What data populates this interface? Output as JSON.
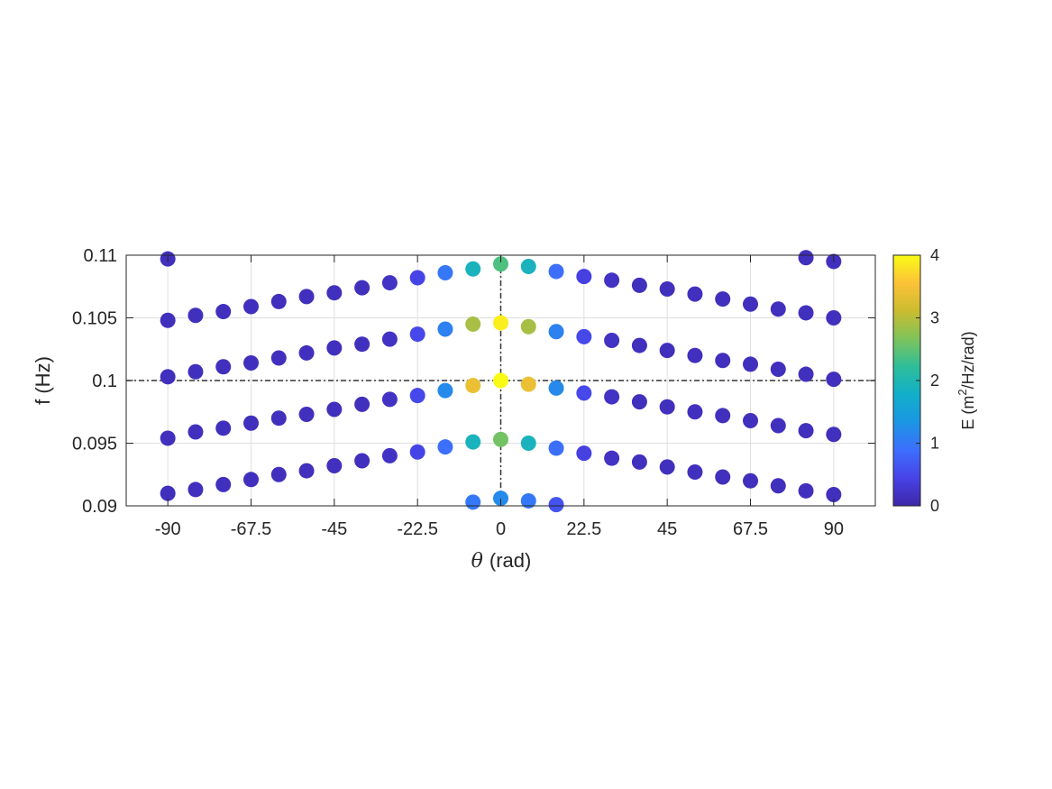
{
  "chart_data": {
    "type": "scatter",
    "xlabel": {
      "symbol": "θ",
      "unit": "(rad)"
    },
    "ylabel": "f (Hz)",
    "xlim": [
      -101.25,
      101.25
    ],
    "ylim": [
      0.09,
      0.11
    ],
    "xticks": [
      -90,
      -67.5,
      -45,
      -22.5,
      0,
      22.5,
      45,
      67.5,
      90
    ],
    "xtick_labels": [
      "-90",
      "-67.5",
      "-45",
      "-22.5",
      "0",
      "22.5",
      "45",
      "67.5",
      "90"
    ],
    "yticks": [
      0.09,
      0.095,
      0.1,
      0.105,
      0.11
    ],
    "ytick_labels": [
      "0.09",
      "0.095",
      "0.1",
      "0.105",
      "0.11"
    ],
    "grid": true,
    "reference_lines": {
      "x": 0,
      "y": 0.1
    },
    "colorbar": {
      "label_prefix": "E (m",
      "label_sup": "2",
      "label_suffix": "/Hz/rad)",
      "range": [
        0,
        4
      ],
      "ticks": [
        0,
        1,
        2,
        3,
        4
      ],
      "tick_labels": [
        "0",
        "1",
        "2",
        "3",
        "4"
      ],
      "colormap": "parula",
      "colors": [
        "#3e26a8",
        "#4743e7",
        "#3d6efd",
        "#1b96e3",
        "#12afca",
        "#2ebe99",
        "#7fc35b",
        "#cbbc2f",
        "#fcc238",
        "#f9fb15"
      ]
    },
    "points": [
      {
        "x": -90,
        "y": 0.1097,
        "e": 0.15
      },
      {
        "x": 82.5,
        "y": 0.1098,
        "e": 0.15
      },
      {
        "x": 90,
        "y": 0.1095,
        "e": 0.15
      },
      {
        "x": -22.5,
        "y": 0.1082,
        "e": 0.45
      },
      {
        "x": -15,
        "y": 0.1086,
        "e": 1.0
      },
      {
        "x": -7.5,
        "y": 0.1089,
        "e": 1.9
      },
      {
        "x": 0,
        "y": 0.1093,
        "e": 2.4
      },
      {
        "x": 7.5,
        "y": 0.1091,
        "e": 1.9
      },
      {
        "x": 15,
        "y": 0.1087,
        "e": 0.9
      },
      {
        "x": 22.5,
        "y": 0.1083,
        "e": 0.4
      },
      {
        "x": -90,
        "y": 0.1048,
        "e": 0.15
      },
      {
        "x": -82.5,
        "y": 0.1052,
        "e": 0.15
      },
      {
        "x": -75,
        "y": 0.1055,
        "e": 0.15
      },
      {
        "x": -67.5,
        "y": 0.1059,
        "e": 0.15
      },
      {
        "x": -60,
        "y": 0.1063,
        "e": 0.15
      },
      {
        "x": -52.5,
        "y": 0.1067,
        "e": 0.15
      },
      {
        "x": -45,
        "y": 0.107,
        "e": 0.15
      },
      {
        "x": -37.5,
        "y": 0.1074,
        "e": 0.15
      },
      {
        "x": -30,
        "y": 0.1078,
        "e": 0.2
      },
      {
        "x": 30,
        "y": 0.108,
        "e": 0.2
      },
      {
        "x": 37.5,
        "y": 0.1076,
        "e": 0.15
      },
      {
        "x": 45,
        "y": 0.1073,
        "e": 0.15
      },
      {
        "x": 52.5,
        "y": 0.1069,
        "e": 0.15
      },
      {
        "x": 60,
        "y": 0.1065,
        "e": 0.15
      },
      {
        "x": 67.5,
        "y": 0.1061,
        "e": 0.15
      },
      {
        "x": 75,
        "y": 0.1057,
        "e": 0.15
      },
      {
        "x": 82.5,
        "y": 0.1054,
        "e": 0.15
      },
      {
        "x": 90,
        "y": 0.105,
        "e": 0.15
      },
      {
        "x": -90,
        "y": 0.1003,
        "e": 0.15
      },
      {
        "x": -82.5,
        "y": 0.1007,
        "e": 0.15
      },
      {
        "x": -75,
        "y": 0.1011,
        "e": 0.15
      },
      {
        "x": -67.5,
        "y": 0.1014,
        "e": 0.15
      },
      {
        "x": -60,
        "y": 0.1018,
        "e": 0.15
      },
      {
        "x": -52.5,
        "y": 0.1022,
        "e": 0.15
      },
      {
        "x": -45,
        "y": 0.1026,
        "e": 0.15
      },
      {
        "x": -37.5,
        "y": 0.1029,
        "e": 0.15
      },
      {
        "x": -30,
        "y": 0.1033,
        "e": 0.2
      },
      {
        "x": -22.5,
        "y": 0.1037,
        "e": 0.5
      },
      {
        "x": -15,
        "y": 0.1041,
        "e": 1.1
      },
      {
        "x": -7.5,
        "y": 0.1045,
        "e": 2.9
      },
      {
        "x": 0,
        "y": 0.1046,
        "e": 3.9
      },
      {
        "x": 7.5,
        "y": 0.1043,
        "e": 2.9
      },
      {
        "x": 15,
        "y": 0.1039,
        "e": 1.1
      },
      {
        "x": 22.5,
        "y": 0.1035,
        "e": 0.5
      },
      {
        "x": 30,
        "y": 0.1032,
        "e": 0.2
      },
      {
        "x": 37.5,
        "y": 0.1028,
        "e": 0.15
      },
      {
        "x": 45,
        "y": 0.1024,
        "e": 0.15
      },
      {
        "x": 52.5,
        "y": 0.102,
        "e": 0.15
      },
      {
        "x": 60,
        "y": 0.1016,
        "e": 0.15
      },
      {
        "x": 67.5,
        "y": 0.1013,
        "e": 0.15
      },
      {
        "x": 75,
        "y": 0.1009,
        "e": 0.15
      },
      {
        "x": 82.5,
        "y": 0.1005,
        "e": 0.15
      },
      {
        "x": 90,
        "y": 0.1001,
        "e": 0.15
      },
      {
        "x": -90,
        "y": 0.0954,
        "e": 0.15
      },
      {
        "x": -82.5,
        "y": 0.0959,
        "e": 0.15
      },
      {
        "x": -75,
        "y": 0.0962,
        "e": 0.15
      },
      {
        "x": -67.5,
        "y": 0.0966,
        "e": 0.15
      },
      {
        "x": -60,
        "y": 0.097,
        "e": 0.15
      },
      {
        "x": -52.5,
        "y": 0.0973,
        "e": 0.15
      },
      {
        "x": -45,
        "y": 0.0977,
        "e": 0.15
      },
      {
        "x": -37.5,
        "y": 0.0981,
        "e": 0.15
      },
      {
        "x": -30,
        "y": 0.0985,
        "e": 0.2
      },
      {
        "x": -22.5,
        "y": 0.0988,
        "e": 0.5
      },
      {
        "x": -15,
        "y": 0.0992,
        "e": 1.2
      },
      {
        "x": -7.5,
        "y": 0.0996,
        "e": 3.4
      },
      {
        "x": 0,
        "y": 0.1,
        "e": 4.0
      },
      {
        "x": 7.5,
        "y": 0.0997,
        "e": 3.4
      },
      {
        "x": 15,
        "y": 0.0994,
        "e": 1.2
      },
      {
        "x": 22.5,
        "y": 0.099,
        "e": 0.5
      },
      {
        "x": 30,
        "y": 0.0987,
        "e": 0.2
      },
      {
        "x": 37.5,
        "y": 0.0983,
        "e": 0.15
      },
      {
        "x": 45,
        "y": 0.0979,
        "e": 0.15
      },
      {
        "x": 52.5,
        "y": 0.0975,
        "e": 0.15
      },
      {
        "x": 60,
        "y": 0.0972,
        "e": 0.15
      },
      {
        "x": 67.5,
        "y": 0.0968,
        "e": 0.15
      },
      {
        "x": 75,
        "y": 0.0964,
        "e": 0.15
      },
      {
        "x": 82.5,
        "y": 0.096,
        "e": 0.15
      },
      {
        "x": 90,
        "y": 0.0957,
        "e": 0.15
      },
      {
        "x": -90,
        "y": 0.091,
        "e": 0.15
      },
      {
        "x": -82.5,
        "y": 0.0913,
        "e": 0.15
      },
      {
        "x": -75,
        "y": 0.0917,
        "e": 0.15
      },
      {
        "x": -67.5,
        "y": 0.0921,
        "e": 0.15
      },
      {
        "x": -60,
        "y": 0.0925,
        "e": 0.15
      },
      {
        "x": -52.5,
        "y": 0.0928,
        "e": 0.15
      },
      {
        "x": -45,
        "y": 0.0932,
        "e": 0.15
      },
      {
        "x": -37.5,
        "y": 0.0936,
        "e": 0.15
      },
      {
        "x": -30,
        "y": 0.094,
        "e": 0.2
      },
      {
        "x": -22.5,
        "y": 0.0943,
        "e": 0.45
      },
      {
        "x": -15,
        "y": 0.0947,
        "e": 0.9
      },
      {
        "x": -7.5,
        "y": 0.0951,
        "e": 1.9
      },
      {
        "x": 0,
        "y": 0.0953,
        "e": 2.6
      },
      {
        "x": 7.5,
        "y": 0.095,
        "e": 1.9
      },
      {
        "x": 15,
        "y": 0.0946,
        "e": 0.9
      },
      {
        "x": 22.5,
        "y": 0.0942,
        "e": 0.4
      },
      {
        "x": 30,
        "y": 0.0938,
        "e": 0.2
      },
      {
        "x": 37.5,
        "y": 0.0935,
        "e": 0.15
      },
      {
        "x": 45,
        "y": 0.0931,
        "e": 0.15
      },
      {
        "x": 52.5,
        "y": 0.0927,
        "e": 0.15
      },
      {
        "x": 60,
        "y": 0.0923,
        "e": 0.15
      },
      {
        "x": 67.5,
        "y": 0.092,
        "e": 0.15
      },
      {
        "x": 75,
        "y": 0.0916,
        "e": 0.15
      },
      {
        "x": 82.5,
        "y": 0.0912,
        "e": 0.15
      },
      {
        "x": 90,
        "y": 0.0909,
        "e": 0.15
      },
      {
        "x": -7.5,
        "y": 0.0903,
        "e": 1.0
      },
      {
        "x": 0,
        "y": 0.0906,
        "e": 1.2
      },
      {
        "x": 7.5,
        "y": 0.0904,
        "e": 1.0
      },
      {
        "x": 15,
        "y": 0.0901,
        "e": 0.6
      }
    ]
  }
}
